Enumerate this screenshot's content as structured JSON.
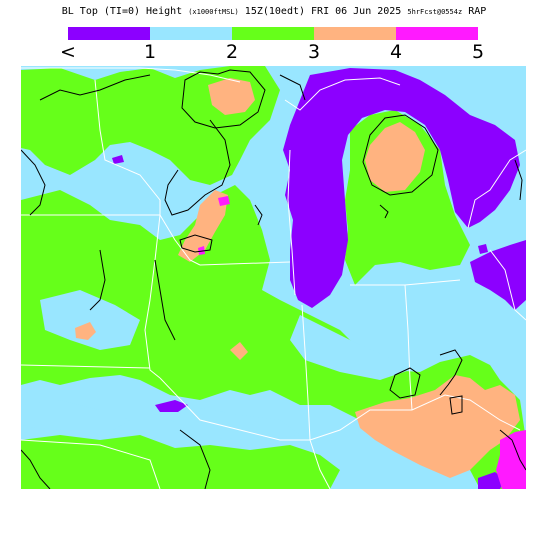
{
  "header": {
    "title_main": "BL Top (TI=0) Height",
    "title_units": "(x1000ftMSL)",
    "title_time": "15Z(10edt) FRI 06 Jun 2025",
    "title_fcst": "5hrFcst@0554z",
    "title_model": "RAP"
  },
  "legend": {
    "colors": [
      "#8c00ff",
      "#99e6ff",
      "#66ff1a",
      "#ffb380",
      "#ff1aff"
    ],
    "labels": [
      "<",
      "1",
      "2",
      "3",
      "4",
      "5"
    ]
  },
  "map": {
    "fill_colors": {
      "purple": "#8c00ff",
      "light_blue": "#99e6ff",
      "green": "#66ff1a",
      "orange": "#ffb380",
      "magenta": "#ff1aff"
    },
    "boundary_color": "#ffffff",
    "contour_color": "#000000"
  }
}
